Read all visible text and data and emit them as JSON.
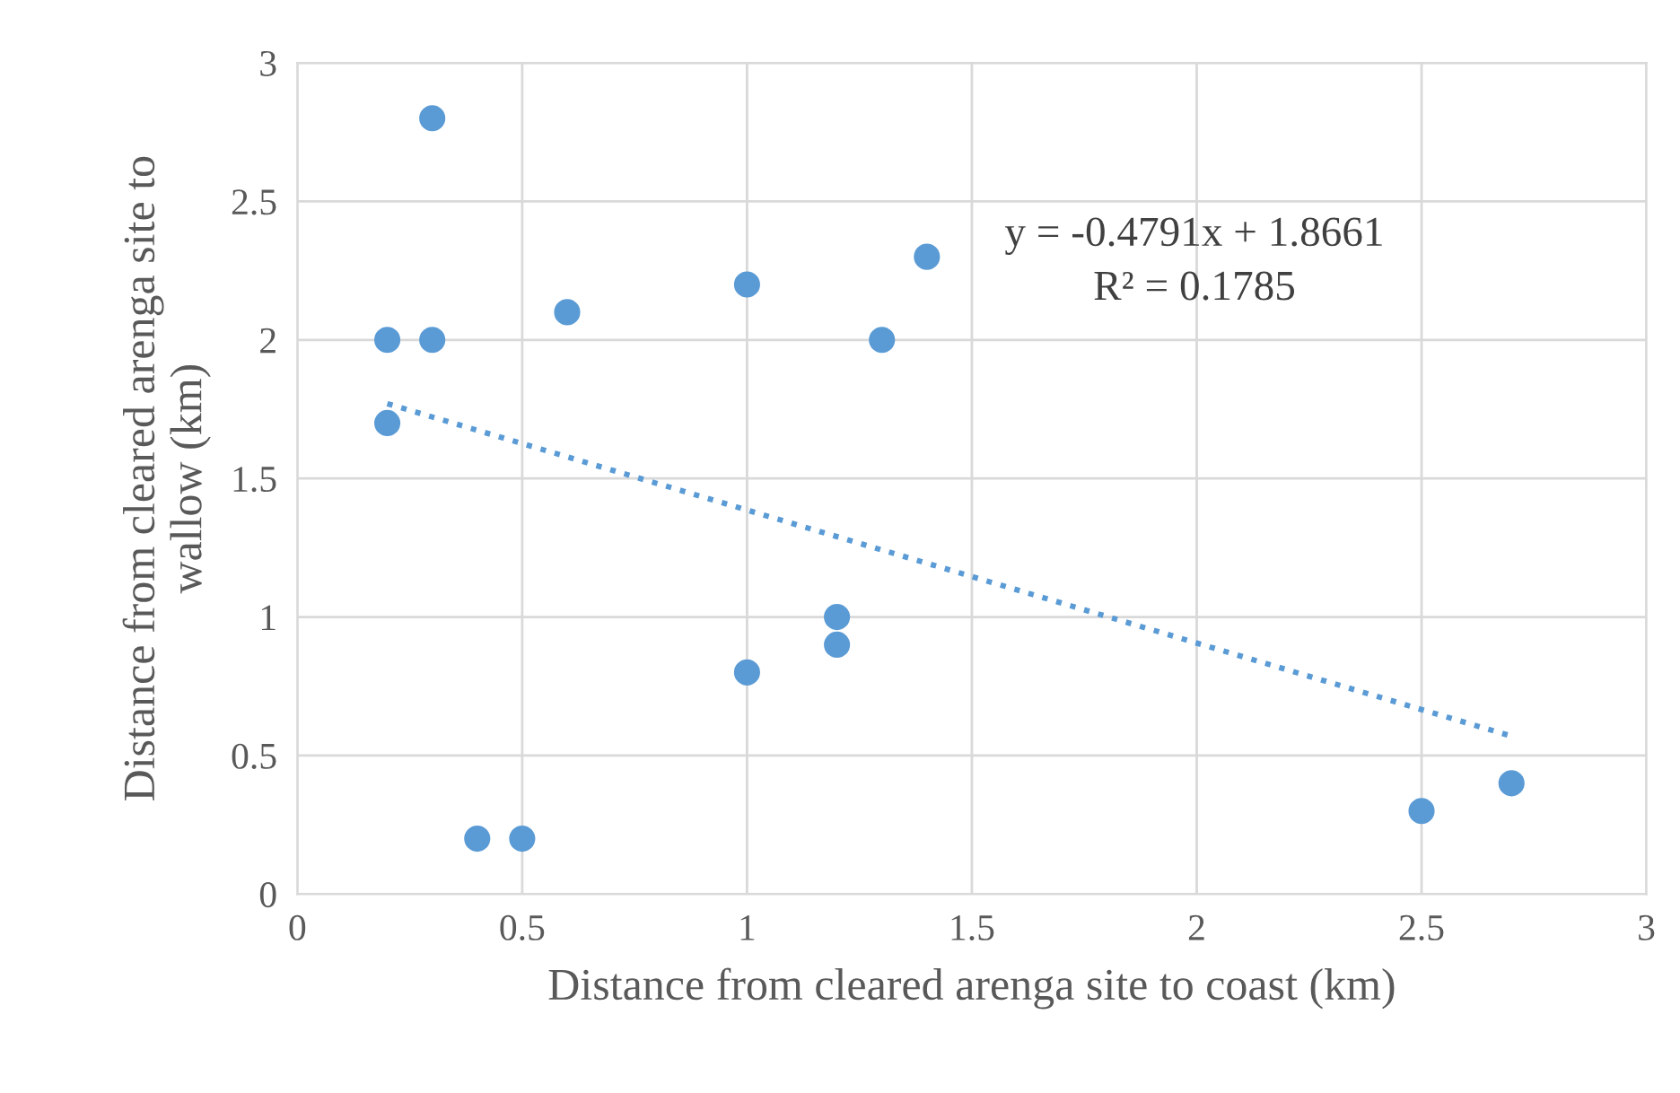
{
  "chart_data": {
    "type": "scatter",
    "xlabel": "Distance from cleared arenga site to coast (km)",
    "ylabel": "Distance from cleared arenga site to\nwallow (km)",
    "series": [
      {
        "color": "#5b9bd5",
        "marker": "circle",
        "x": [
          0.2,
          0.2,
          0.3,
          0.3,
          0.6,
          1.0,
          1.4,
          1.3,
          1.2,
          1.2,
          1.0,
          0.4,
          0.5,
          2.5,
          2.7
        ],
        "values": [
          2.0,
          1.7,
          2.8,
          2.0,
          2.1,
          2.2,
          2.3,
          2.0,
          1.0,
          0.9,
          0.8,
          0.2,
          0.2,
          0.3,
          0.4
        ]
      },
      {
        "type": "line",
        "color": "#5b9bd5",
        "line_style": "dotted",
        "marker": "none",
        "x": [
          0.2,
          2.7
        ],
        "values": [
          1.77,
          0.57
        ]
      }
    ],
    "annotations": [
      "y = -0.4791x + 1.8661",
      "R² = 0.1785"
    ],
    "xlim": [
      0,
      3
    ],
    "ylim": [
      0,
      3
    ],
    "xticks": [
      0,
      0.5,
      1,
      1.5,
      2,
      2.5,
      3
    ],
    "yticks": [
      0,
      0.5,
      1,
      1.5,
      2,
      2.5,
      3
    ],
    "grid": true,
    "legend": false
  }
}
